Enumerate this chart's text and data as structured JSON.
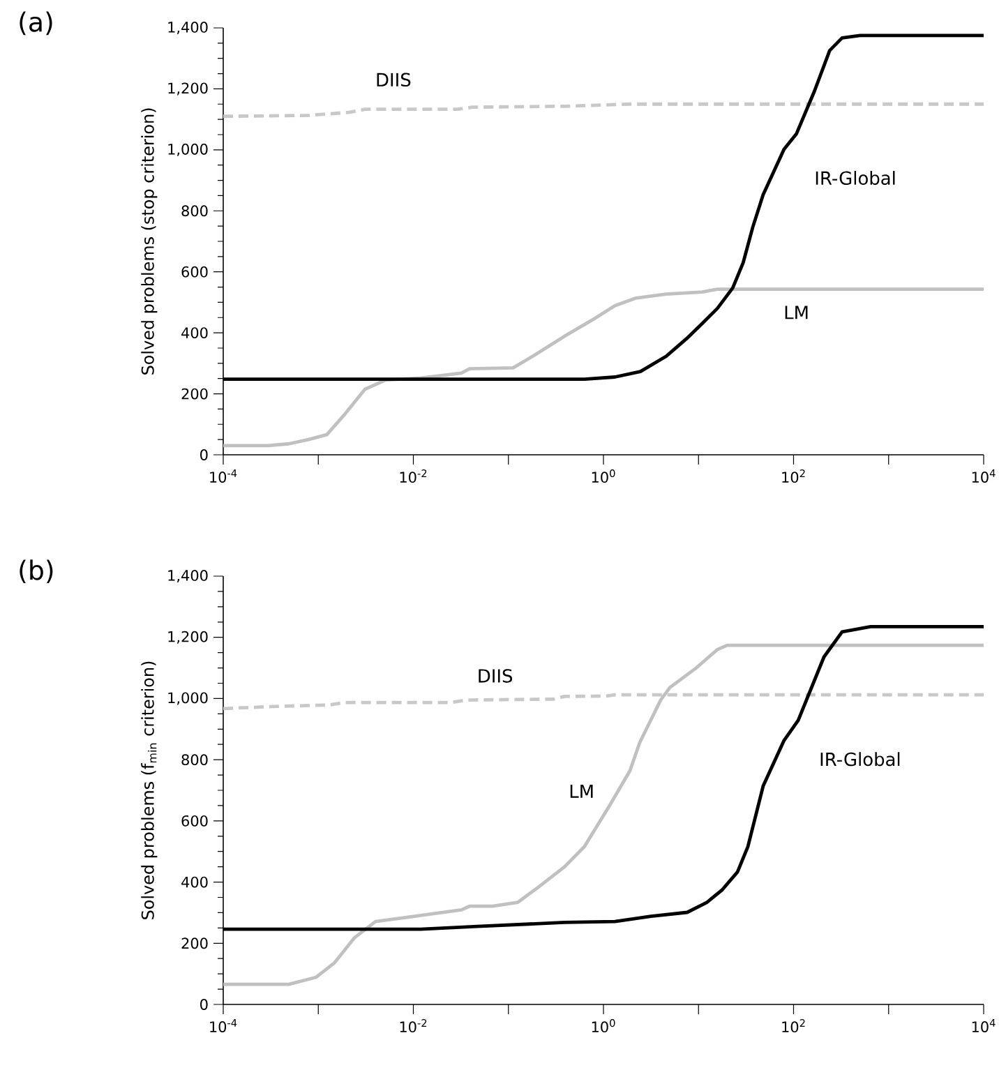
{
  "chart_data": [
    {
      "type": "line",
      "title": "(a)",
      "ylabel": "Solved problems (stop criterion)",
      "log": "x",
      "xlim": [
        0.0001,
        10000.0
      ],
      "ylim": [
        0,
        1400
      ],
      "xticks": [
        {
          "value": 0.0001,
          "label": "10$^{-4}$"
        },
        {
          "value": 0.001,
          "label": null
        },
        {
          "value": 0.01,
          "label": "10$^{-2}$"
        },
        {
          "value": 0.1,
          "label": null
        },
        {
          "value": 1,
          "label": "10$^{0}$"
        },
        {
          "value": 10,
          "label": null
        },
        {
          "value": 100,
          "label": "10$^{2}$"
        },
        {
          "value": 1000,
          "label": null
        },
        {
          "value": 10000,
          "label": "10$^{4}$"
        }
      ],
      "yticks": [
        {
          "value": 0,
          "label": "0"
        },
        {
          "value": 200,
          "label": "200"
        },
        {
          "value": 400,
          "label": "400"
        },
        {
          "value": 600,
          "label": "600"
        },
        {
          "value": 800,
          "label": "800"
        },
        {
          "value": 1000,
          "label": "1,000"
        },
        {
          "value": 1200,
          "label": "1,200"
        },
        {
          "value": 1400,
          "label": "1,400"
        }
      ],
      "series": [
        {
          "name": "IR-Global",
          "color": "#000000",
          "line_style": "solid",
          "x": [
            0.0001,
            0.63,
            1.32,
            2.45,
            4.57,
            7.5,
            11,
            15.8,
            22.9,
            29.5,
            37.2,
            47.9,
            79.4,
            107,
            166,
            240,
            324,
            501,
            10000.0
          ],
          "values": [
            248,
            248,
            255,
            273,
            323,
            381,
            431,
            480,
            547,
            630,
            746,
            853,
            1002,
            1052,
            1193,
            1326,
            1367,
            1375,
            1375
          ]
        },
        {
          "name": "LM",
          "color": "#c0c0c0",
          "line_style": "solid",
          "x": [
            0.0001,
            0.000295,
            0.00049,
            0.00079,
            0.00123,
            0.0019,
            0.0031,
            0.0051,
            0.012,
            0.032,
            0.039,
            0.112,
            0.18,
            0.39,
            0.81,
            1.32,
            2.2,
            4.57,
            11,
            15.8,
            10000.0
          ],
          "values": [
            30,
            30,
            36,
            50,
            66,
            133,
            215,
            245,
            252,
            268,
            282,
            285,
            323,
            389,
            447,
            489,
            514,
            527,
            534,
            543,
            543
          ]
        },
        {
          "name": "DIIS",
          "color": "#c8c8c8",
          "line_style": "dashed",
          "x": [
            0.0001,
            0.00079,
            0.0021,
            0.0031,
            0.029,
            0.042,
            0.39,
            1.9,
            10000.0
          ],
          "values": [
            1110,
            1113,
            1123,
            1133,
            1133,
            1140,
            1143,
            1150,
            1150
          ]
        }
      ]
    },
    {
      "type": "line",
      "title": "(b)",
      "ylabel": "Solved problems (f$_{min}$ criterion)",
      "log": "x",
      "xlim": [
        0.0001,
        10000.0
      ],
      "ylim": [
        0,
        1400
      ],
      "xticks": [
        {
          "value": 0.0001,
          "label": "10$^{-4}$"
        },
        {
          "value": 0.001,
          "label": null
        },
        {
          "value": 0.01,
          "label": "10$^{-2}$"
        },
        {
          "value": 0.1,
          "label": null
        },
        {
          "value": 1,
          "label": "10$^{0}$"
        },
        {
          "value": 10,
          "label": null
        },
        {
          "value": 100,
          "label": "10$^{2}$"
        },
        {
          "value": 1000,
          "label": null
        },
        {
          "value": 10000,
          "label": "10$^{4}$"
        }
      ],
      "yticks": [
        {
          "value": 0,
          "label": "0"
        },
        {
          "value": 200,
          "label": "200"
        },
        {
          "value": 400,
          "label": "400"
        },
        {
          "value": 600,
          "label": "600"
        },
        {
          "value": 800,
          "label": "800"
        },
        {
          "value": 1000,
          "label": "1,000"
        },
        {
          "value": 1200,
          "label": "1,200"
        },
        {
          "value": 1400,
          "label": "1,400"
        }
      ],
      "series": [
        {
          "name": "IR-Global",
          "color": "#000000",
          "line_style": "solid",
          "x": [
            0.0001,
            0.012,
            0.047,
            0.39,
            1.32,
            3.16,
            7.6,
            12.3,
            17.8,
            25.7,
            33.1,
            47.9,
            79.4,
            112,
            209,
            324,
            646,
            10000.0
          ],
          "values": [
            246,
            246,
            255,
            268,
            271,
            288,
            301,
            334,
            375,
            433,
            516,
            714,
            863,
            929,
            1136,
            1218,
            1235,
            1235
          ]
        },
        {
          "name": "LM",
          "color": "#c0c0c0",
          "line_style": "solid",
          "x": [
            0.0001,
            0.00049,
            0.00095,
            0.00148,
            0.0024,
            0.004,
            0.0083,
            0.032,
            0.039,
            0.068,
            0.126,
            0.2,
            0.39,
            0.63,
            1.15,
            1.9,
            2.4,
            4,
            5,
            9.3,
            15.8,
            20,
            10000.0
          ],
          "values": [
            66,
            66,
            89,
            136,
            218,
            271,
            284,
            309,
            321,
            321,
            334,
            380,
            450,
            516,
            648,
            764,
            855,
            995,
            1036,
            1098,
            1160,
            1174,
            1174
          ]
        },
        {
          "name": "DIIS",
          "color": "#c8c8c8",
          "line_style": "dashed",
          "x": [
            0.0001,
            0.00034,
            0.0013,
            0.0019,
            0.025,
            0.036,
            0.3,
            0.39,
            1.05,
            1.32,
            10000.0
          ],
          "values": [
            967,
            974,
            979,
            987,
            987,
            995,
            998,
            1007,
            1008,
            1012,
            1012
          ]
        }
      ]
    }
  ]
}
